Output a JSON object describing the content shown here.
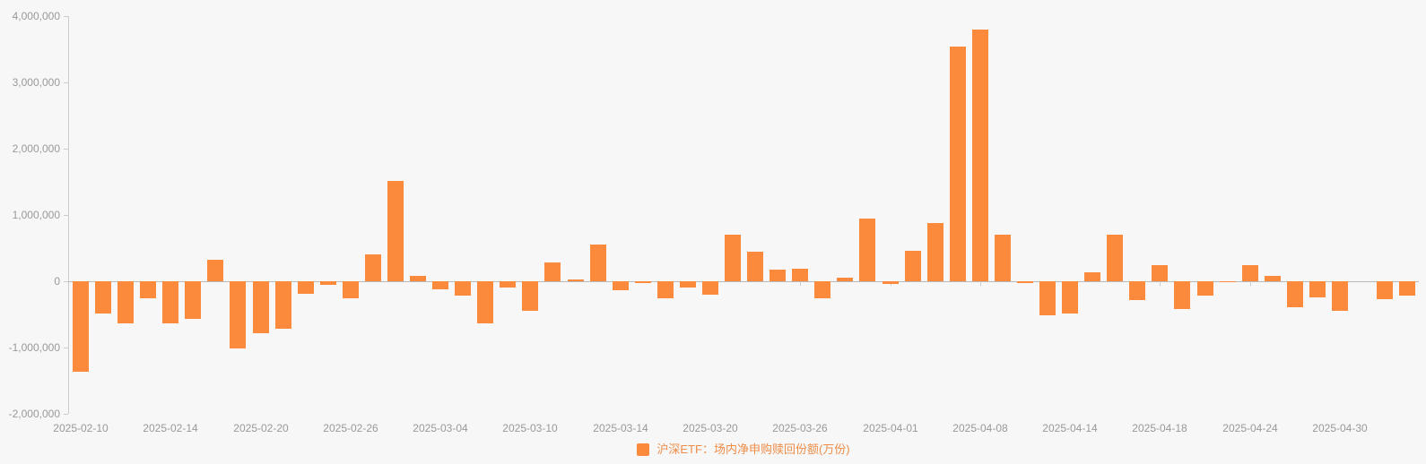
{
  "chart_data": {
    "type": "bar",
    "title": "",
    "xlabel": "",
    "ylabel": "",
    "series_name": "沪深ETF：场内净申购赎回份额(万份)",
    "x": [
      "2025-02-10",
      "2025-02-11",
      "2025-02-12",
      "2025-02-13",
      "2025-02-14",
      "2025-02-17",
      "2025-02-18",
      "2025-02-19",
      "2025-02-20",
      "2025-02-21",
      "2025-02-24",
      "2025-02-25",
      "2025-02-26",
      "2025-02-27",
      "2025-02-28",
      "2025-03-03",
      "2025-03-04",
      "2025-03-05",
      "2025-03-06",
      "2025-03-07",
      "2025-03-10",
      "2025-03-11",
      "2025-03-12",
      "2025-03-13",
      "2025-03-14",
      "2025-03-17",
      "2025-03-18",
      "2025-03-19",
      "2025-03-20",
      "2025-03-21",
      "2025-03-24",
      "2025-03-25",
      "2025-03-26",
      "2025-03-27",
      "2025-03-28",
      "2025-03-31",
      "2025-04-01",
      "2025-04-02",
      "2025-04-03",
      "2025-04-07",
      "2025-04-08",
      "2025-04-09",
      "2025-04-10",
      "2025-04-11",
      "2025-04-14",
      "2025-04-15",
      "2025-04-16",
      "2025-04-17",
      "2025-04-18",
      "2025-04-21",
      "2025-04-22",
      "2025-04-23",
      "2025-04-24",
      "2025-04-25",
      "2025-04-28",
      "2025-04-29",
      "2025-04-30",
      "2025-05-06",
      "2025-05-07",
      "2025-05-08"
    ],
    "values": [
      -1360000,
      -490000,
      -640000,
      -250000,
      -630000,
      -570000,
      320000,
      -1020000,
      -780000,
      -710000,
      -190000,
      -60000,
      -260000,
      400000,
      1510000,
      80000,
      -120000,
      -220000,
      -640000,
      -100000,
      -440000,
      290000,
      30000,
      550000,
      -140000,
      -30000,
      -250000,
      -90000,
      -200000,
      700000,
      450000,
      170000,
      190000,
      -260000,
      60000,
      950000,
      -40000,
      460000,
      880000,
      3540000,
      3800000,
      700000,
      -30000,
      -510000,
      -490000,
      130000,
      700000,
      -280000,
      250000,
      -420000,
      -220000,
      -10000,
      250000,
      80000,
      -390000,
      -240000,
      -440000,
      0,
      -270000,
      -210000
    ],
    "ylim": [
      -2000000,
      4000000
    ],
    "y_tick_interval": 1000000,
    "y_ticks": [
      {
        "value": 4000000,
        "label": "4,000,000"
      },
      {
        "value": 3000000,
        "label": "3,000,000"
      },
      {
        "value": 2000000,
        "label": "2,000,000"
      },
      {
        "value": 1000000,
        "label": "1,000,000"
      },
      {
        "value": 0,
        "label": "0"
      },
      {
        "value": -1000000,
        "label": "-1,000,000"
      },
      {
        "value": -2000000,
        "label": "-2,000,000"
      }
    ],
    "x_ticks_shown": [
      "2025-02-10",
      "2025-02-14",
      "2025-02-20",
      "2025-02-26",
      "2025-03-04",
      "2025-03-10",
      "2025-03-14",
      "2025-03-20",
      "2025-03-26",
      "2025-04-01",
      "2025-04-08",
      "2025-04-14",
      "2025-04-18",
      "2025-04-24",
      "2025-04-30"
    ],
    "grid": "off",
    "legend_position": "bottom-center",
    "colors": {
      "bar": "#fb8a3c",
      "legend_text": "#ee8c48",
      "axis_line": "#cccccc",
      "zero_line": "#b9b9b9",
      "tick_label": "#999999",
      "background": "#f7f7f7"
    }
  },
  "legend": {
    "label": "沪深ETF：场内净申购赎回份额(万份)"
  }
}
